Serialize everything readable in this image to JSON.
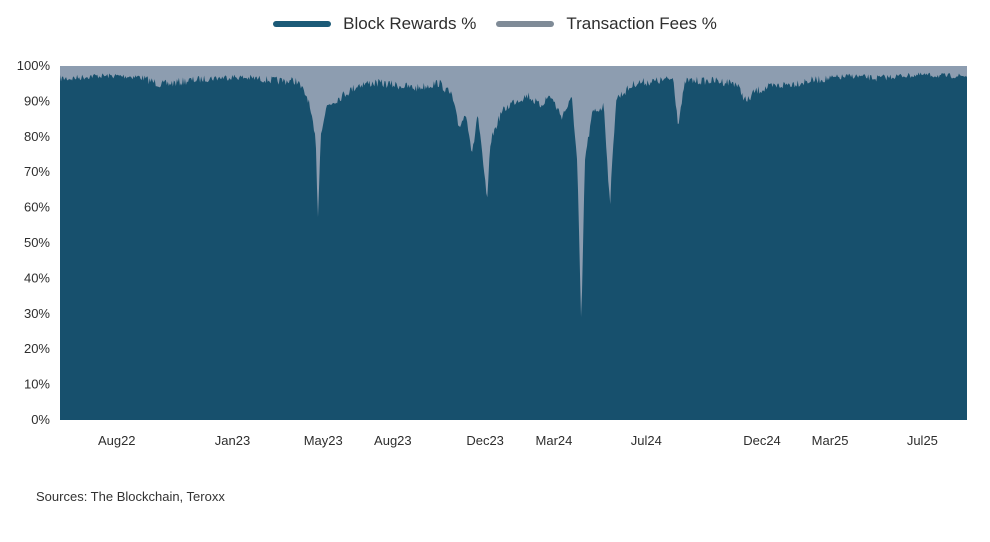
{
  "chart_data": {
    "type": "area",
    "stacked": true,
    "title": "",
    "xlabel": "",
    "ylabel": "",
    "ylim": [
      0,
      100
    ],
    "y_unit": "%",
    "y_ticks": [
      "0%",
      "10%",
      "20%",
      "30%",
      "40%",
      "50%",
      "60%",
      "70%",
      "80%",
      "90%",
      "100%"
    ],
    "x_ticks": [
      "Aug22",
      "Jan23",
      "May23",
      "Aug23",
      "Dec23",
      "Mar24",
      "Jul24",
      "Dec24",
      "Mar25",
      "Jul25"
    ],
    "x_range": [
      "2022-06",
      "2025-09"
    ],
    "legend_position": "top-center",
    "series": [
      {
        "name": "Block Rewards %",
        "color": "#17506d",
        "points": [
          [
            "2022-06-15",
            97.5
          ],
          [
            "2022-07-15",
            98.0
          ],
          [
            "2022-08-15",
            98.0
          ],
          [
            "2022-09-15",
            97.8
          ],
          [
            "2022-10-15",
            96.0
          ],
          [
            "2022-11-15",
            97.0
          ],
          [
            "2022-12-15",
            97.5
          ],
          [
            "2023-01-15",
            97.8
          ],
          [
            "2023-02-15",
            97.5
          ],
          [
            "2023-03-15",
            97.0
          ],
          [
            "2023-04-10",
            97.0
          ],
          [
            "2023-04-25",
            92.0
          ],
          [
            "2023-05-05",
            80.0
          ],
          [
            "2023-05-08",
            59.0
          ],
          [
            "2023-05-12",
            83.0
          ],
          [
            "2023-05-20",
            90.0
          ],
          [
            "2023-06-10",
            93.0
          ],
          [
            "2023-07-01",
            96.0
          ],
          [
            "2023-07-20",
            96.5
          ],
          [
            "2023-08-15",
            96.0
          ],
          [
            "2023-09-15",
            95.0
          ],
          [
            "2023-10-15",
            96.5
          ],
          [
            "2023-11-01",
            93.0
          ],
          [
            "2023-11-10",
            84.0
          ],
          [
            "2023-11-20",
            88.0
          ],
          [
            "2023-11-28",
            76.0
          ],
          [
            "2023-12-05",
            88.0
          ],
          [
            "2023-12-12",
            74.0
          ],
          [
            "2023-12-18",
            63.0
          ],
          [
            "2023-12-22",
            80.0
          ],
          [
            "2024-01-05",
            88.0
          ],
          [
            "2024-01-20",
            91.0
          ],
          [
            "2024-02-10",
            93.0
          ],
          [
            "2024-02-25",
            90.0
          ],
          [
            "2024-03-10",
            93.0
          ],
          [
            "2024-03-25",
            87.0
          ],
          [
            "2024-04-08",
            92.0
          ],
          [
            "2024-04-15",
            73.0
          ],
          [
            "2024-04-20",
            27.0
          ],
          [
            "2024-04-25",
            75.0
          ],
          [
            "2024-05-05",
            88.0
          ],
          [
            "2024-05-20",
            90.0
          ],
          [
            "2024-05-28",
            62.0
          ],
          [
            "2024-06-05",
            92.0
          ],
          [
            "2024-07-01",
            96.5
          ],
          [
            "2024-08-01",
            97.0
          ],
          [
            "2024-08-20",
            97.5
          ],
          [
            "2024-08-26",
            85.0
          ],
          [
            "2024-09-05",
            97.0
          ],
          [
            "2024-10-15",
            97.0
          ],
          [
            "2024-11-10",
            96.5
          ],
          [
            "2024-11-25",
            91.0
          ],
          [
            "2024-12-05",
            94.0
          ],
          [
            "2024-12-20",
            95.0
          ],
          [
            "2025-01-15",
            96.0
          ],
          [
            "2025-02-15",
            97.0
          ],
          [
            "2025-03-15",
            97.5
          ],
          [
            "2025-04-15",
            98.0
          ],
          [
            "2025-05-15",
            97.5
          ],
          [
            "2025-06-15",
            98.0
          ],
          [
            "2025-07-15",
            98.2
          ],
          [
            "2025-08-15",
            98.0
          ],
          [
            "2025-09-05",
            98.0
          ]
        ]
      },
      {
        "name": "Transaction Fees %",
        "color": "#8d9db0",
        "stack_total": 100
      }
    ]
  },
  "legend": {
    "items": [
      {
        "label": "Block Rewards %",
        "color": "#1b5a77"
      },
      {
        "label": "Transaction Fees %",
        "color": "#7f8b97"
      }
    ]
  },
  "footer": {
    "source": "Sources: The Blockchain, Teroxx"
  }
}
